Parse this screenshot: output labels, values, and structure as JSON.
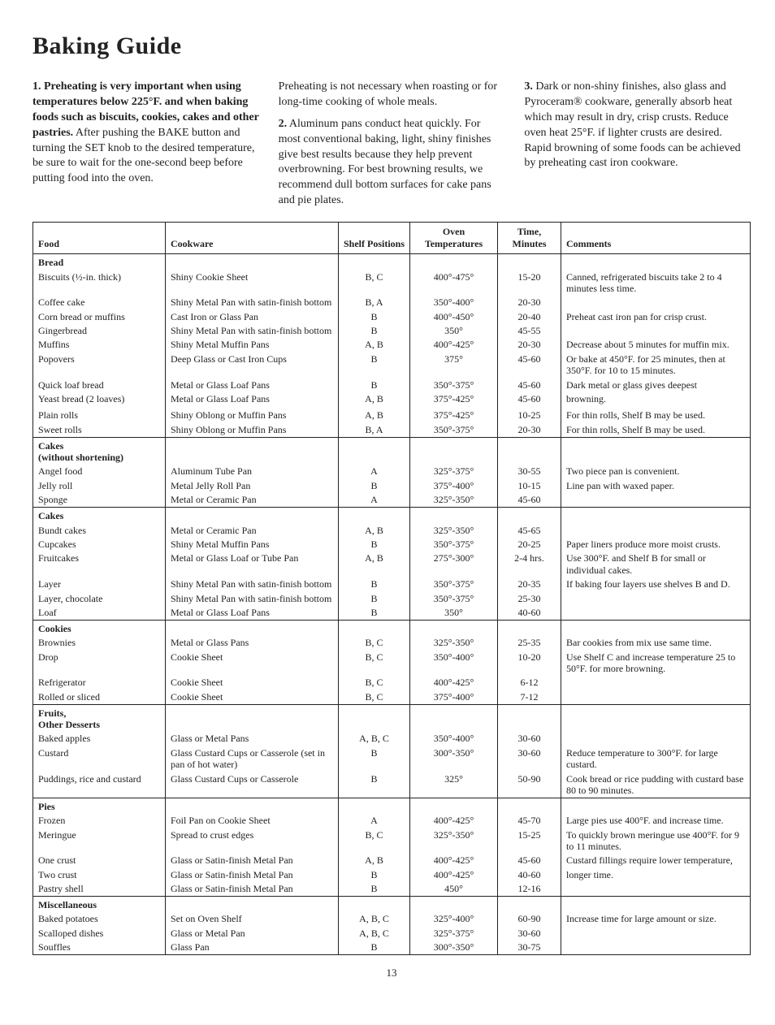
{
  "title": "Baking Guide",
  "intro": {
    "col1_bold": "1. Preheating is very important when using temperatures below 225°F. and when baking foods such as biscuits, cookies, cakes and other pastries.",
    "col1_rest": " After pushing the BAKE button and turning the SET knob to the desired temperature, be sure to wait for the one-second beep before putting food into the oven.",
    "col2_p1": "Preheating is not necessary when roasting or for long-time cooking of whole meals.",
    "col2_num": "2.",
    "col2_p2": " Aluminum pans conduct heat quickly. For most conventional baking, light, shiny finishes give best results because they help prevent overbrowning. For best browning results, we recommend dull bottom surfaces for cake pans and pie plates.",
    "col3_num": "3.",
    "col3_p": " Dark or non-shiny finishes, also glass and Pyroceram® cookware, generally absorb heat which may result in dry, crisp crusts. Reduce oven heat 25°F. if lighter crusts are desired. Rapid browning of some foods can be achieved by preheating cast iron cookware."
  },
  "headers": {
    "food": "Food",
    "cookware": "Cookware",
    "shelf": "Shelf Positions",
    "oven": "Oven Temperatures",
    "time": "Time, Minutes",
    "comments": "Comments"
  },
  "sections": [
    {
      "title": "Bread",
      "rows": [
        {
          "food": "Biscuits (½-in. thick)",
          "cook": "Shiny Cookie Sheet",
          "shelf": "B, C",
          "temp": "400°-475°",
          "time": "15-20",
          "comm": "Canned, refrigerated biscuits take 2 to 4 minutes less time."
        },
        {
          "food": "Coffee cake",
          "cook": "Shiny Metal Pan with satin-finish bottom",
          "shelf": "B, A",
          "temp": "350°-400°",
          "time": "20-30",
          "comm": ""
        },
        {
          "food": "Corn bread or muffins",
          "cook": "Cast Iron or Glass Pan",
          "shelf": "B",
          "temp": "400°-450°",
          "time": "20-40",
          "comm": "Preheat cast iron pan for crisp crust."
        },
        {
          "food": "Gingerbread",
          "cook": "Shiny Metal Pan with satin-finish bottom",
          "shelf": "B",
          "temp": "350°",
          "time": "45-55",
          "comm": ""
        },
        {
          "food": "Muffins",
          "cook": "Shiny Metal Muffin Pans",
          "shelf": "A, B",
          "temp": "400°-425°",
          "time": "20-30",
          "comm": "Decrease about 5 minutes for muffin mix."
        },
        {
          "food": "Popovers",
          "cook": "Deep Glass or Cast Iron Cups",
          "shelf": "B",
          "temp": "375°",
          "time": "45-60",
          "comm": "Or bake at 450°F. for 25 minutes, then at 350°F. for 10 to 15 minutes."
        },
        {
          "food": "Quick loaf bread",
          "cook": "Metal or Glass Loaf Pans",
          "shelf": "B",
          "temp": "350°-375°",
          "time": "45-60",
          "comm": "Dark metal or glass gives deepest"
        },
        {
          "food": "Yeast bread (2 loaves)",
          "cook": "Metal or Glass Loaf Pans",
          "shelf": "A, B",
          "temp": "375°-425°",
          "time": "45-60",
          "comm": "browning."
        },
        {
          "food": " ",
          "cook": "",
          "shelf": "",
          "temp": "",
          "time": "",
          "comm": ""
        },
        {
          "food": "Plain rolls",
          "cook": "Shiny Oblong or Muffin Pans",
          "shelf": "A, B",
          "temp": "375°-425°",
          "time": "10-25",
          "comm": "For thin rolls, Shelf B may be used."
        },
        {
          "food": "Sweet rolls",
          "cook": "Shiny Oblong or Muffin Pans",
          "shelf": "B, A",
          "temp": "350°-375°",
          "time": "20-30",
          "comm": "For thin rolls, Shelf B may be used."
        }
      ]
    },
    {
      "title": "Cakes",
      "subtitle": "(without shortening)",
      "rows": [
        {
          "food": "Angel food",
          "cook": "Aluminum Tube Pan",
          "shelf": "A",
          "temp": "325°-375°",
          "time": "30-55",
          "comm": "Two piece pan is convenient."
        },
        {
          "food": "Jelly roll",
          "cook": "Metal Jelly Roll Pan",
          "shelf": "B",
          "temp": "375°-400°",
          "time": "10-15",
          "comm": "Line pan with waxed paper."
        },
        {
          "food": "Sponge",
          "cook": "Metal or Ceramic Pan",
          "shelf": "A",
          "temp": "325°-350°",
          "time": "45-60",
          "comm": ""
        }
      ]
    },
    {
      "title": "Cakes",
      "rows": [
        {
          "food": "Bundt cakes",
          "cook": "Metal or Ceramic Pan",
          "shelf": "A, B",
          "temp": "325°-350°",
          "time": "45-65",
          "comm": ""
        },
        {
          "food": "Cupcakes",
          "cook": "Shiny Metal Muffin Pans",
          "shelf": "B",
          "temp": "350°-375°",
          "time": "20-25",
          "comm": "Paper liners produce more moist crusts."
        },
        {
          "food": "Fruitcakes",
          "cook": "Metal or Glass Loaf or Tube Pan",
          "shelf": "A, B",
          "temp": "275°-300°",
          "time": "2-4 hrs.",
          "comm": "Use 300°F. and Shelf B for small or individual cakes."
        },
        {
          "food": "Layer",
          "cook": "Shiny Metal Pan with satin-finish bottom",
          "shelf": "B",
          "temp": "350°-375°",
          "time": "20-35",
          "comm": "If baking four layers use shelves B and D."
        },
        {
          "food": "Layer, chocolate",
          "cook": "Shiny Metal Pan with satin-finish bottom",
          "shelf": "B",
          "temp": "350°-375°",
          "time": "25-30",
          "comm": ""
        },
        {
          "food": "Loaf",
          "cook": "Metal or Glass Loaf Pans",
          "shelf": "B",
          "temp": "350°",
          "time": "40-60",
          "comm": ""
        }
      ]
    },
    {
      "title": "Cookies",
      "rows": [
        {
          "food": "Brownies",
          "cook": "Metal or Glass Pans",
          "shelf": "B, C",
          "temp": "325°-350°",
          "time": "25-35",
          "comm": "Bar cookies from mix use same time."
        },
        {
          "food": "Drop",
          "cook": "Cookie Sheet",
          "shelf": "B, C",
          "temp": "350°-400°",
          "time": "10-20",
          "comm": "Use Shelf C and increase temperature 25 to 50°F. for more browning."
        },
        {
          "food": "Refrigerator",
          "cook": "Cookie Sheet",
          "shelf": "B, C",
          "temp": "400°-425°",
          "time": "6-12",
          "comm": ""
        },
        {
          "food": "Rolled or sliced",
          "cook": "Cookie Sheet",
          "shelf": "B, C",
          "temp": "375°-400°",
          "time": "7-12",
          "comm": ""
        }
      ]
    },
    {
      "title": "Fruits,",
      "subtitle": "Other Desserts",
      "subbold": true,
      "rows": [
        {
          "food": "Baked apples",
          "cook": "Glass or Metal Pans",
          "shelf": "A, B, C",
          "temp": "350°-400°",
          "time": "30-60",
          "comm": ""
        },
        {
          "food": "Custard",
          "cook": "Glass Custard Cups or Casserole (set in pan of hot water)",
          "shelf": "B",
          "temp": "300°-350°",
          "time": "30-60",
          "comm": "Reduce temperature to 300°F. for large custard."
        },
        {
          "food": "Puddings, rice and custard",
          "cook": "Glass Custard Cups or Casserole",
          "shelf": "B",
          "temp": "325°",
          "time": "50-90",
          "comm": "Cook bread or rice pudding with custard base 80 to 90 minutes."
        }
      ]
    },
    {
      "title": "Pies",
      "rows": [
        {
          "food": "Frozen",
          "cook": "Foil Pan on Cookie Sheet",
          "shelf": "A",
          "temp": "400°-425°",
          "time": "45-70",
          "comm": "Large pies use 400°F. and increase time."
        },
        {
          "food": "Meringue",
          "cook": "Spread to crust edges",
          "shelf": "B, C",
          "temp": "325°-350°",
          "time": "15-25",
          "comm": "To quickly brown meringue use 400°F. for 9 to 11 minutes."
        },
        {
          "food": "One crust",
          "cook": "Glass or Satin-finish Metal Pan",
          "shelf": "A, B",
          "temp": "400°-425°",
          "time": "45-60",
          "comm": "Custard fillings require lower temperature,"
        },
        {
          "food": "Two crust",
          "cook": "Glass or Satin-finish Metal Pan",
          "shelf": "B",
          "temp": "400°-425°",
          "time": "40-60",
          "comm": "longer time."
        },
        {
          "food": "Pastry shell",
          "cook": "Glass or Satin-finish Metal Pan",
          "shelf": "B",
          "temp": "450°",
          "time": "12-16",
          "comm": ""
        }
      ]
    },
    {
      "title": "Miscellaneous",
      "rows": [
        {
          "food": "Baked potatoes",
          "cook": "Set on Oven Shelf",
          "shelf": "A, B, C",
          "temp": "325°-400°",
          "time": "60-90",
          "comm": "Increase time for large amount or size."
        },
        {
          "food": "Scalloped dishes",
          "cook": "Glass or Metal Pan",
          "shelf": "A, B, C",
          "temp": "325°-375°",
          "time": "30-60",
          "comm": ""
        },
        {
          "food": "Souffles",
          "cook": "Glass Pan",
          "shelf": "B",
          "temp": "300°-350°",
          "time": "30-75",
          "comm": ""
        }
      ]
    }
  ],
  "pagenum": "13"
}
